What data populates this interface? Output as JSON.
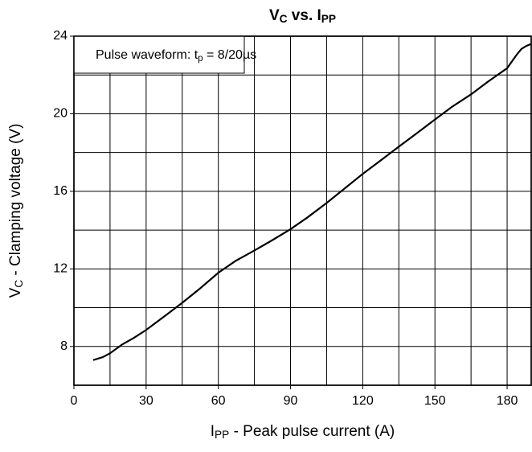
{
  "chart_data": {
    "type": "line",
    "title": [
      "V",
      "C",
      " vs. I",
      "PP"
    ],
    "xlabel": [
      "I",
      "PP",
      " - Peak pulse current (A)"
    ],
    "ylabel": [
      "V",
      "C",
      " - Clamping voltage (V)"
    ],
    "annotation": [
      "Pulse waveform: t",
      "p",
      " = 8/20µs"
    ],
    "x": [
      8,
      12,
      15,
      20,
      25,
      30,
      37,
      45,
      52,
      60,
      67,
      75,
      82,
      90,
      97,
      105,
      112,
      120,
      127,
      135,
      142,
      150,
      157,
      165,
      172,
      180,
      182,
      184,
      186,
      188,
      190
    ],
    "series": [
      {
        "name": "VC",
        "color": "#000000",
        "values": [
          7.3,
          7.45,
          7.65,
          8.1,
          8.45,
          8.85,
          9.5,
          10.25,
          10.95,
          11.8,
          12.4,
          12.95,
          13.45,
          14.05,
          14.65,
          15.4,
          16.1,
          16.9,
          17.55,
          18.3,
          18.95,
          19.7,
          20.35,
          21.0,
          21.65,
          22.35,
          22.7,
          23.05,
          23.35,
          23.5,
          23.6
        ]
      }
    ],
    "xlim": [
      0,
      190
    ],
    "ylim": [
      6,
      24
    ],
    "xticks": [
      0,
      30,
      60,
      90,
      120,
      150,
      180
    ],
    "yticks": [
      8,
      12,
      16,
      20,
      24
    ],
    "xgrid": [
      15,
      30,
      45,
      60,
      75,
      90,
      105,
      120,
      135,
      150,
      165,
      180
    ],
    "ygrid": [
      8,
      10,
      12,
      14,
      16,
      18,
      20,
      22
    ],
    "grid": true
  }
}
